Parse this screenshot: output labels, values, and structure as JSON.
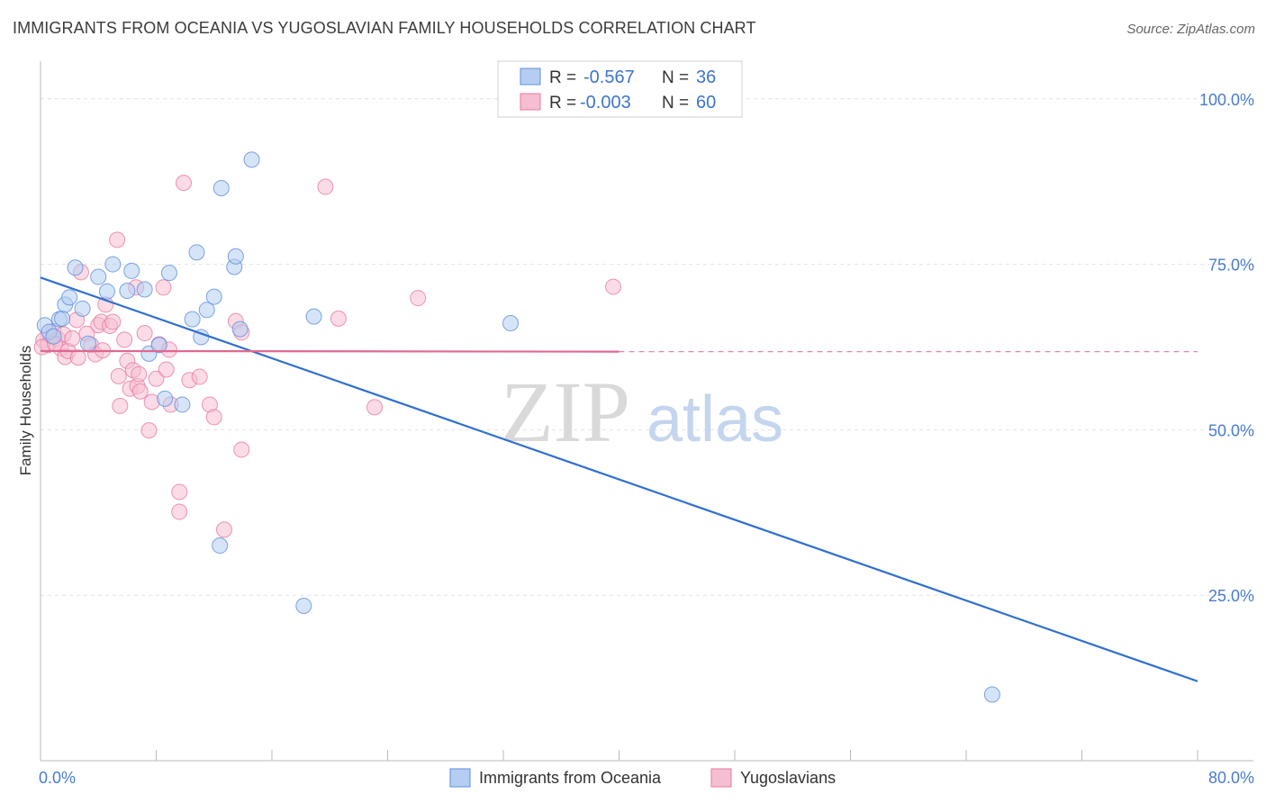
{
  "title": "IMMIGRANTS FROM OCEANIA VS YUGOSLAVIAN FAMILY HOUSEHOLDS CORRELATION CHART",
  "source": "Source: ZipAtlas.com",
  "watermark": {
    "zip": "ZIP",
    "atlas": "atlas"
  },
  "colors": {
    "blue": "#5b8fe0",
    "blue_fill": "#b5cdf0",
    "pink": "#e77aa0",
    "pink_fill": "#f5bed2",
    "blue_line": "#2f6fcf",
    "pink_line": "#e06890"
  },
  "legend": {
    "rows": [
      {
        "r_label": "R =",
        "r_value": "-0.567",
        "n_label": "N =",
        "n_value": "36"
      },
      {
        "r_label": "R =",
        "r_value": "-0.003",
        "n_label": "N =",
        "n_value": "60"
      }
    ]
  },
  "bottom_legend": [
    "Immigrants from Oceania",
    "Yugoslavians"
  ],
  "chart_data": {
    "type": "scatter",
    "xlabel": "",
    "ylabel": "Family Households",
    "xlim": [
      0,
      80
    ],
    "ylim": [
      0,
      105
    ],
    "x_tick_labels": [
      "0.0%",
      "80.0%"
    ],
    "y_ticks": [
      25,
      50,
      75,
      100
    ],
    "y_tick_labels": [
      "25.0%",
      "50.0%",
      "75.0%",
      "100.0%"
    ],
    "grid": true,
    "series": [
      {
        "name": "Immigrants from Oceania",
        "r": -0.567,
        "n": 36,
        "trend": {
          "x0": 0,
          "y0": 73.0,
          "x1": 80,
          "y1": 12.0
        },
        "points": [
          [
            0.3,
            65.8
          ],
          [
            0.6,
            64.8
          ],
          [
            0.9,
            64.1
          ],
          [
            1.3,
            66.7
          ],
          [
            1.5,
            66.8
          ],
          [
            1.7,
            68.9
          ],
          [
            2.0,
            70.0
          ],
          [
            2.4,
            74.5
          ],
          [
            2.9,
            68.3
          ],
          [
            3.3,
            63.0
          ],
          [
            4.0,
            73.1
          ],
          [
            4.6,
            70.9
          ],
          [
            5.0,
            75.0
          ],
          [
            6.0,
            71.0
          ],
          [
            6.3,
            74.0
          ],
          [
            7.2,
            71.2
          ],
          [
            7.5,
            61.5
          ],
          [
            8.2,
            62.8
          ],
          [
            8.6,
            54.7
          ],
          [
            8.9,
            73.7
          ],
          [
            9.8,
            53.8
          ],
          [
            10.5,
            66.7
          ],
          [
            10.8,
            76.8
          ],
          [
            11.1,
            64.0
          ],
          [
            11.5,
            68.1
          ],
          [
            12.0,
            70.1
          ],
          [
            12.5,
            86.5
          ],
          [
            13.4,
            74.6
          ],
          [
            13.5,
            76.2
          ],
          [
            13.8,
            65.2
          ],
          [
            14.6,
            90.8
          ],
          [
            18.2,
            23.4
          ],
          [
            18.9,
            67.1
          ],
          [
            12.4,
            32.5
          ],
          [
            32.5,
            66.1
          ],
          [
            65.8,
            10.0
          ]
        ]
      },
      {
        "name": "Yugoslavians",
        "r": -0.003,
        "n": 60,
        "trend": {
          "x0": 0,
          "y0": 61.9,
          "x1": 40,
          "y1": 61.8
        },
        "trend_dashed": {
          "x0": 40,
          "y0": 61.8,
          "x1": 80,
          "y1": 61.8
        },
        "points": [
          [
            0.2,
            63.5
          ],
          [
            0.5,
            62.8
          ],
          [
            0.7,
            64.2
          ],
          [
            0.9,
            64.9
          ],
          [
            1.2,
            63.7
          ],
          [
            1.4,
            62.3
          ],
          [
            1.6,
            64.4
          ],
          [
            1.7,
            61.0
          ],
          [
            1.9,
            61.9
          ],
          [
            2.2,
            63.8
          ],
          [
            2.5,
            66.6
          ],
          [
            2.8,
            73.8
          ],
          [
            3.2,
            64.5
          ],
          [
            3.5,
            62.8
          ],
          [
            3.8,
            61.4
          ],
          [
            4.0,
            65.8
          ],
          [
            4.2,
            66.3
          ],
          [
            4.5,
            68.9
          ],
          [
            4.8,
            65.7
          ],
          [
            5.0,
            66.3
          ],
          [
            5.3,
            78.7
          ],
          [
            5.4,
            58.1
          ],
          [
            5.5,
            53.6
          ],
          [
            5.8,
            63.6
          ],
          [
            6.0,
            60.4
          ],
          [
            6.2,
            56.2
          ],
          [
            6.4,
            59.0
          ],
          [
            6.6,
            71.5
          ],
          [
            6.7,
            56.6
          ],
          [
            6.8,
            58.4
          ],
          [
            6.9,
            55.8
          ],
          [
            7.2,
            64.6
          ],
          [
            7.5,
            49.9
          ],
          [
            7.7,
            54.2
          ],
          [
            8.0,
            57.7
          ],
          [
            8.2,
            62.9
          ],
          [
            8.5,
            71.5
          ],
          [
            8.7,
            59.1
          ],
          [
            8.9,
            62.1
          ],
          [
            9.0,
            53.8
          ],
          [
            9.6,
            40.6
          ],
          [
            9.6,
            37.6
          ],
          [
            9.9,
            87.3
          ],
          [
            10.3,
            57.5
          ],
          [
            11.0,
            58.0
          ],
          [
            11.7,
            53.8
          ],
          [
            12.0,
            51.9
          ],
          [
            12.7,
            34.9
          ],
          [
            13.5,
            66.4
          ],
          [
            13.9,
            47.0
          ],
          [
            13.9,
            64.7
          ],
          [
            19.7,
            86.7
          ],
          [
            20.6,
            66.8
          ],
          [
            23.1,
            53.4
          ],
          [
            26.1,
            69.9
          ],
          [
            39.6,
            71.6
          ],
          [
            0.1,
            62.5
          ],
          [
            1.0,
            63.0
          ],
          [
            2.6,
            60.9
          ],
          [
            4.3,
            62.0
          ]
        ]
      }
    ]
  }
}
